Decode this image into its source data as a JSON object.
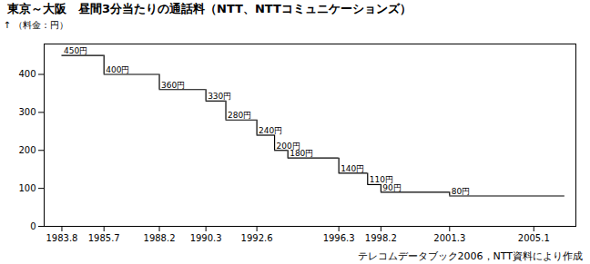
{
  "chart_data": {
    "type": "step",
    "title": "東京～大阪　昼間3分当たりの通話料（NTT、NTTコミュニケーションズ）",
    "ylabel": "（料金：円）",
    "source": "テレコムデータブック2006，NTT資料により作成",
    "x": [
      1983.8,
      1985.7,
      1988.2,
      1990.3,
      1991.2,
      1992.6,
      1993.4,
      1994.0,
      1996.3,
      1997.6,
      1998.2,
      2001.3
    ],
    "x_end": [
      1985.7,
      1988.2,
      1990.3,
      1991.2,
      1992.6,
      1993.4,
      1994.0,
      1996.3,
      1997.6,
      1998.2,
      2001.3,
      2006.5
    ],
    "values": [
      450,
      400,
      360,
      330,
      280,
      240,
      200,
      180,
      140,
      110,
      90,
      80
    ],
    "value_labels": [
      "450円",
      "400円",
      "360円",
      "330円",
      "280円",
      "240円",
      "200円",
      "180円",
      "140円",
      "110円",
      "90円",
      "80円"
    ],
    "data_labels": true,
    "color": "#000000",
    "xlim": [
      1983.0,
      2007.0
    ],
    "xticks": [
      1983.8,
      1985.7,
      1988.2,
      1990.3,
      1992.6,
      1996.3,
      1998.2,
      2001.3,
      2005.1
    ],
    "ylim": [
      0,
      480
    ],
    "yticks": [
      0,
      100,
      200,
      300,
      400
    ]
  }
}
